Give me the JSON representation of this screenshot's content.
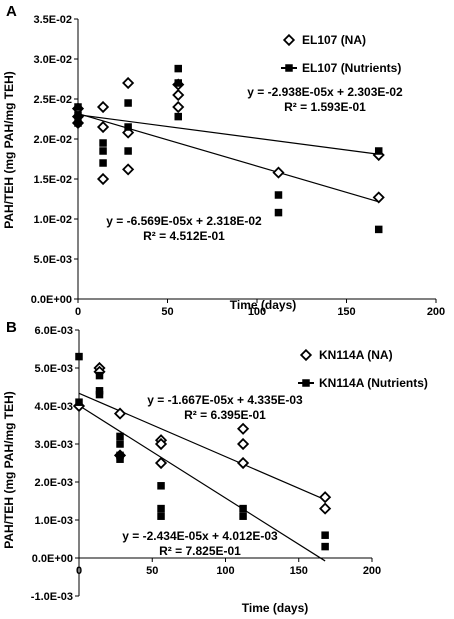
{
  "chart_data": [
    {
      "type": "scatter",
      "panel_label": "A",
      "xlabel": "Time (days)",
      "ylabel": "PAH/TEH (mg PAH/mg TEH)",
      "xlim": [
        0,
        200
      ],
      "ylim": [
        0,
        0.035
      ],
      "x_ticks": [
        "0",
        "50",
        "100",
        "150",
        "200"
      ],
      "y_ticks": [
        "0.0E+00",
        "5.0E-03",
        "1.0E-02",
        "1.5E-02",
        "2.0E-02",
        "2.5E-02",
        "3.0E-02",
        "3.5E-02"
      ],
      "legend_position": "top-right",
      "series": [
        {
          "name": "EL107 (NA)",
          "marker": "open-diamond",
          "x": [
            0,
            0,
            0,
            14,
            14,
            14,
            28,
            28,
            28,
            56,
            56,
            56,
            112,
            168,
            168
          ],
          "y": [
            0.0238,
            0.0228,
            0.022,
            0.024,
            0.0215,
            0.015,
            0.027,
            0.0208,
            0.0162,
            0.0268,
            0.0255,
            0.024,
            0.0158,
            0.018,
            0.0127
          ],
          "trendline": {
            "slope": -6.569e-05,
            "intercept": 0.02318,
            "equation": "y = -6.569E-05x + 2.318E-02",
            "r2": "R² = 4.512E-01"
          }
        },
        {
          "name": "EL107 (Nutrients)",
          "marker": "filled-square",
          "x": [
            0,
            0,
            0,
            14,
            14,
            14,
            28,
            28,
            28,
            56,
            56,
            56,
            112,
            112,
            168,
            168
          ],
          "y": [
            0.024,
            0.023,
            0.022,
            0.0195,
            0.0185,
            0.017,
            0.0245,
            0.0215,
            0.0185,
            0.0288,
            0.027,
            0.0228,
            0.013,
            0.0108,
            0.0185,
            0.0087
          ],
          "trendline": {
            "slope": -2.938e-05,
            "intercept": 0.02303,
            "equation": "y = -2.938E-05x + 2.303E-02",
            "r2": "R² = 1.593E-01"
          }
        }
      ]
    },
    {
      "type": "scatter",
      "panel_label": "B",
      "xlabel": "Time (days)",
      "ylabel": "PAH/TEH (mg PAH/mg TEH)",
      "xlim": [
        0,
        200
      ],
      "ylim": [
        -0.001,
        0.006
      ],
      "x_ticks": [
        "0",
        "50",
        "100",
        "150",
        "200"
      ],
      "y_ticks": [
        "-1.0E-03",
        "0.0E+00",
        "1.0E-03",
        "2.0E-03",
        "3.0E-03",
        "4.0E-03",
        "5.0E-03",
        "6.0E-03"
      ],
      "legend_position": "top-right",
      "series": [
        {
          "name": "KN114A (NA)",
          "marker": "open-diamond",
          "x": [
            0,
            14,
            14,
            28,
            28,
            56,
            56,
            56,
            112,
            112,
            112,
            168,
            168
          ],
          "y": [
            0.004,
            0.005,
            0.0049,
            0.0038,
            0.0027,
            0.0031,
            0.003,
            0.0025,
            0.0034,
            0.003,
            0.0025,
            0.0016,
            0.0013
          ],
          "trendline": {
            "slope": -1.667e-05,
            "intercept": 0.004335,
            "equation": "y = -1.667E-05x + 4.335E-03",
            "r2": "R² = 6.395E-01"
          }
        },
        {
          "name": "KN114A (Nutrients)",
          "marker": "filled-square",
          "x": [
            0,
            0,
            14,
            14,
            14,
            28,
            28,
            28,
            28,
            56,
            56,
            56,
            112,
            112,
            168,
            168
          ],
          "y": [
            0.0053,
            0.0041,
            0.0048,
            0.0044,
            0.0043,
            0.0032,
            0.003,
            0.0027,
            0.0026,
            0.0019,
            0.0013,
            0.0011,
            0.0013,
            0.0011,
            0.0006,
            0.0003
          ],
          "trendline": {
            "slope": -2.434e-05,
            "intercept": 0.004012,
            "equation": "y = -2.434E-05x + 4.012E-03",
            "r2": "R² = 7.825E-01"
          }
        }
      ]
    }
  ]
}
